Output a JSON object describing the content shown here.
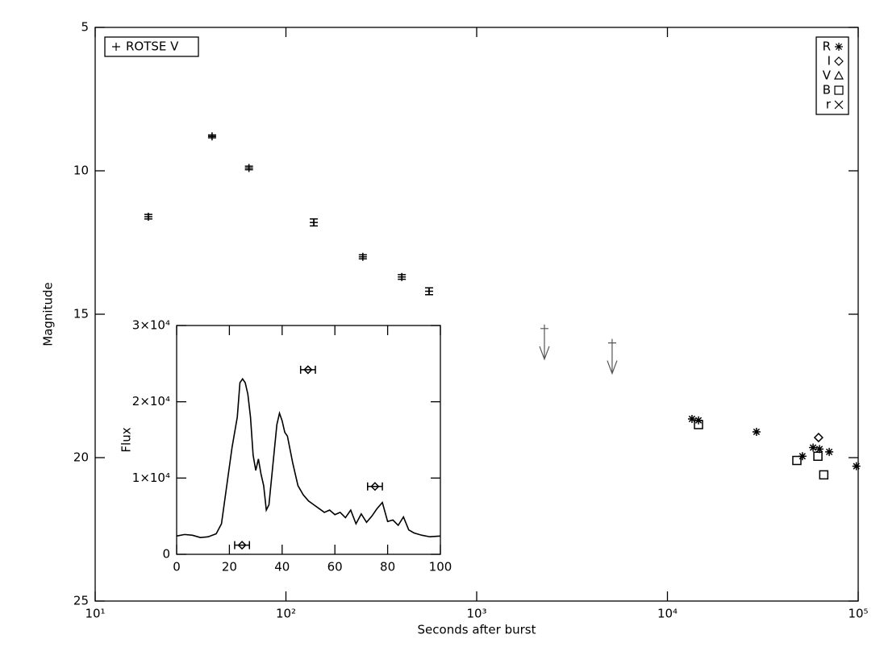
{
  "chart_data": [
    {
      "type": "scatter",
      "xlabel": "Seconds after burst",
      "ylabel": "Magnitude",
      "xlog": true,
      "xlim": [
        10,
        100000
      ],
      "ylim": [
        25,
        5
      ],
      "xticks": [
        {
          "value": 10,
          "label": "10¹"
        },
        {
          "value": 100,
          "label": "10²"
        },
        {
          "value": 1000,
          "label": "10³"
        },
        {
          "value": 10000,
          "label": "10⁴"
        },
        {
          "value": 100000,
          "label": "10⁵"
        }
      ],
      "yticks": [
        5,
        10,
        15,
        20,
        25
      ],
      "series": [
        {
          "name": "ROTSE V",
          "marker": "plus",
          "legend_loc": "upper left",
          "color": "#000000",
          "x": [
            19,
            41,
            64,
            140,
            253,
            405,
            563
          ],
          "values": [
            11.6,
            8.8,
            9.9,
            11.8,
            13.0,
            13.7,
            14.2
          ],
          "errors": [
            0.08,
            0.05,
            0.06,
            0.12,
            0.07,
            0.08,
            0.12
          ]
        },
        {
          "name": "R",
          "marker": "asterisk",
          "legend_loc": "upper right",
          "color": "#000000",
          "x": [
            13450,
            14550,
            29300,
            51000,
            58000,
            62700,
            70500,
            97800
          ],
          "values": [
            18.65,
            18.7,
            19.1,
            19.95,
            19.65,
            19.7,
            19.8,
            20.3
          ]
        },
        {
          "name": "I",
          "marker": "diamond",
          "legend_loc": "upper right",
          "color": "#000000",
          "x": [
            62000
          ],
          "values": [
            19.3
          ]
        },
        {
          "name": "V",
          "marker": "triangle",
          "legend_loc": "upper right",
          "color": "#000000",
          "x": [],
          "values": []
        },
        {
          "name": "B",
          "marker": "square",
          "legend_loc": "upper right",
          "color": "#000000",
          "x": [
            14550,
            47700,
            61500,
            66000
          ],
          "values": [
            18.85,
            20.1,
            19.95,
            20.6
          ]
        },
        {
          "name": "r",
          "marker": "cross",
          "legend_loc": "upper right",
          "color": "#000000",
          "x": [],
          "values": []
        }
      ],
      "upper_limits": {
        "x": [
          2265,
          5130
        ],
        "values": [
          15.5,
          16.0
        ],
        "color": "#555555"
      }
    },
    {
      "type": "line",
      "ylabel": "Flux",
      "xlim": [
        0,
        100
      ],
      "ylim": [
        0,
        30000
      ],
      "xticks": [
        0,
        20,
        40,
        60,
        80,
        100
      ],
      "yticks": [
        0,
        {
          "value": 10000,
          "label": "1×10⁴"
        },
        {
          "value": 20000,
          "label": "2×10⁴"
        },
        {
          "value": 30000,
          "label": "3×10⁴"
        }
      ],
      "color": "#000000",
      "x": [
        0,
        3,
        6,
        9,
        12,
        15,
        17,
        19,
        21,
        23,
        24,
        25,
        26,
        27,
        28,
        29,
        30,
        31,
        32,
        33,
        34,
        35,
        36,
        37,
        38,
        39,
        40,
        41,
        42,
        44,
        46,
        48,
        50,
        52,
        54,
        56,
        58,
        60,
        62,
        64,
        66,
        68,
        70,
        72,
        74,
        76,
        78,
        80,
        82,
        84,
        86,
        88,
        90,
        93,
        96,
        100
      ],
      "values": [
        2400,
        2600,
        2500,
        2200,
        2300,
        2700,
        4000,
        9000,
        14000,
        18000,
        22500,
        23000,
        22500,
        21000,
        18000,
        13000,
        11000,
        12500,
        10500,
        9000,
        5800,
        6500,
        10000,
        13500,
        17000,
        18500,
        17500,
        16000,
        15500,
        12000,
        9000,
        7800,
        7000,
        6500,
        6000,
        5500,
        5800,
        5200,
        5500,
        4800,
        5800,
        4000,
        5300,
        4200,
        5000,
        6000,
        6800,
        4300,
        4500,
        3800,
        4900,
        3200,
        2800,
        2500,
        2300,
        2400
      ],
      "points": {
        "marker": "diamond",
        "x": [
          24.8,
          49.8,
          75.2
        ],
        "values": [
          1200,
          24200,
          8900
        ],
        "xerr": [
          2.8,
          2.8,
          2.8
        ]
      }
    }
  ]
}
